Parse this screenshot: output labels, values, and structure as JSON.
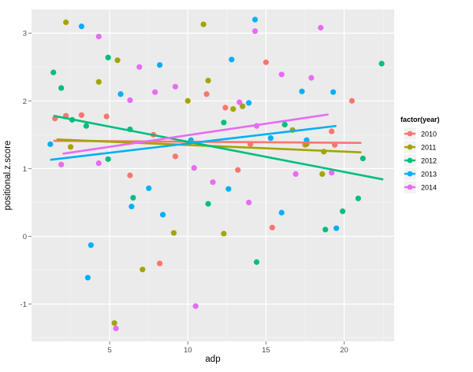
{
  "chart_data": {
    "type": "scatter",
    "xlabel": "adp",
    "ylabel": "positional.z.score",
    "xlim": [
      0,
      23.2
    ],
    "ylim": [
      -1.55,
      3.35
    ],
    "x_ticks": [
      5,
      10,
      15,
      20
    ],
    "y_ticks": [
      -1,
      0,
      1,
      2,
      3
    ],
    "grid": true,
    "legend": {
      "title": "factor(year)",
      "placement": "right"
    },
    "series": [
      {
        "name": "2010",
        "color": "#F8766D",
        "trend": {
          "x": [
            1.4,
            21.1
          ],
          "y": [
            1.41,
            1.38
          ]
        },
        "points": [
          [
            1.5,
            1.74
          ],
          [
            2.2,
            1.78
          ],
          [
            3.2,
            1.79
          ],
          [
            4.8,
            1.77
          ],
          [
            6.3,
            0.9
          ],
          [
            7.8,
            1.5
          ],
          [
            8.2,
            -0.4
          ],
          [
            9.2,
            1.18
          ],
          [
            11.2,
            2.1
          ],
          [
            12.4,
            1.9
          ],
          [
            13.2,
            0.98
          ],
          [
            14.0,
            1.36
          ],
          [
            15.0,
            2.57
          ],
          [
            15.4,
            0.13
          ],
          [
            17.5,
            1.35
          ],
          [
            19.2,
            1.55
          ],
          [
            20.5,
            2.0
          ],
          [
            19.4,
            1.35
          ]
        ]
      },
      {
        "name": "2011",
        "color": "#A3A500",
        "trend": {
          "x": [
            1.6,
            21.1
          ],
          "y": [
            1.43,
            1.24
          ]
        },
        "points": [
          [
            2.2,
            3.16
          ],
          [
            2.5,
            1.32
          ],
          [
            4.3,
            2.28
          ],
          [
            5.3,
            -1.28
          ],
          [
            5.5,
            2.6
          ],
          [
            7.1,
            -0.49
          ],
          [
            9.1,
            0.05
          ],
          [
            10.0,
            2.0
          ],
          [
            11.0,
            3.13
          ],
          [
            11.3,
            2.3
          ],
          [
            12.3,
            0.04
          ],
          [
            12.9,
            1.88
          ],
          [
            13.5,
            1.92
          ],
          [
            17.6,
            1.36
          ],
          [
            18.6,
            0.92
          ],
          [
            16.7,
            1.57
          ],
          [
            18.7,
            1.25
          ]
        ]
      },
      {
        "name": "2012",
        "color": "#00BF7D",
        "trend": {
          "x": [
            1.4,
            22.5
          ],
          "y": [
            1.78,
            0.84
          ]
        },
        "points": [
          [
            1.4,
            2.42
          ],
          [
            1.9,
            2.19
          ],
          [
            2.6,
            1.72
          ],
          [
            3.5,
            1.63
          ],
          [
            4.9,
            2.64
          ],
          [
            4.9,
            1.14
          ],
          [
            6.3,
            1.58
          ],
          [
            6.5,
            0.57
          ],
          [
            11.3,
            0.48
          ],
          [
            12.3,
            1.68
          ],
          [
            14.4,
            -0.38
          ],
          [
            16.2,
            1.65
          ],
          [
            18.8,
            0.1
          ],
          [
            19.9,
            0.37
          ],
          [
            20.9,
            0.56
          ],
          [
            21.2,
            1.15
          ],
          [
            22.4,
            2.55
          ]
        ]
      },
      {
        "name": "2013",
        "color": "#00B0F6",
        "trend": {
          "x": [
            1.2,
            19.5
          ],
          "y": [
            1.13,
            1.63
          ]
        },
        "points": [
          [
            1.2,
            1.36
          ],
          [
            3.2,
            3.1
          ],
          [
            3.8,
            -0.13
          ],
          [
            3.6,
            -0.61
          ],
          [
            5.7,
            2.1
          ],
          [
            6.4,
            0.44
          ],
          [
            7.5,
            0.71
          ],
          [
            8.2,
            2.53
          ],
          [
            8.4,
            0.32
          ],
          [
            10.2,
            1.42
          ],
          [
            12.6,
            0.7
          ],
          [
            12.8,
            2.61
          ],
          [
            13.9,
            1.97
          ],
          [
            14.3,
            3.2
          ],
          [
            15.3,
            1.45
          ],
          [
            16.0,
            0.35
          ],
          [
            17.3,
            2.14
          ],
          [
            17.6,
            1.42
          ],
          [
            19.3,
            2.13
          ],
          [
            19.5,
            0.12
          ]
        ]
      },
      {
        "name": "2014",
        "color": "#E76BF3",
        "trend": {
          "x": [
            2.0,
            19.0
          ],
          "y": [
            1.22,
            1.8
          ]
        },
        "points": [
          [
            1.9,
            1.06
          ],
          [
            4.3,
            2.95
          ],
          [
            4.3,
            1.08
          ],
          [
            5.4,
            -1.36
          ],
          [
            6.3,
            2.01
          ],
          [
            6.9,
            2.5
          ],
          [
            7.9,
            2.13
          ],
          [
            9.2,
            2.21
          ],
          [
            10.4,
            1.01
          ],
          [
            10.5,
            -1.03
          ],
          [
            11.6,
            0.8
          ],
          [
            13.3,
            1.98
          ],
          [
            13.9,
            0.5
          ],
          [
            14.3,
            3.03
          ],
          [
            14.4,
            1.63
          ],
          [
            16.0,
            2.39
          ],
          [
            16.9,
            0.92
          ],
          [
            17.9,
            2.34
          ],
          [
            18.5,
            3.08
          ],
          [
            19.2,
            0.94
          ]
        ]
      }
    ]
  }
}
